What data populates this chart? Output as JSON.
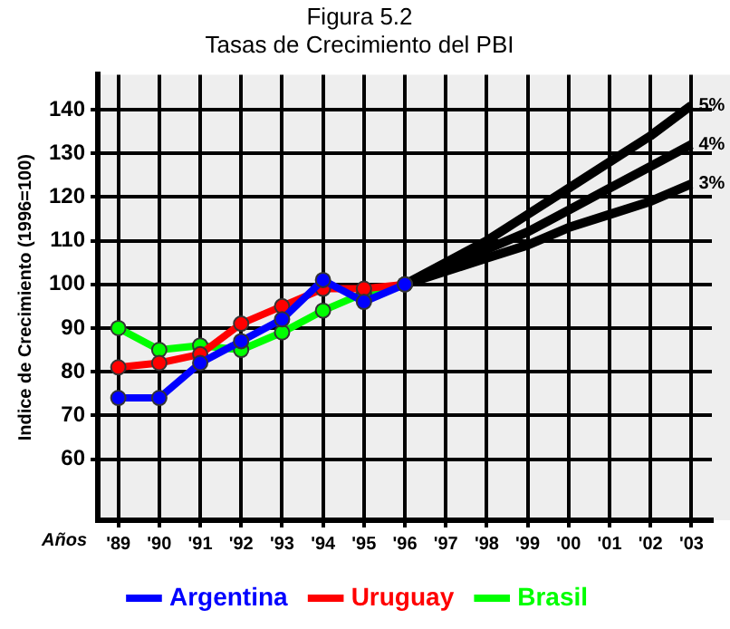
{
  "chart_data": {
    "type": "line",
    "title": "Figura 5.2",
    "subtitle": "Tasas de Crecimiento del PBI",
    "xlabel": "Años",
    "ylabel": "Indice de Crecimiento (1996=100)",
    "categories": [
      "'89",
      "'90",
      "'91",
      "'92",
      "'93",
      "'94",
      "'95",
      "'96",
      "'97",
      "'98",
      "'99",
      "'00",
      "'01",
      "'02",
      "'03"
    ],
    "series": [
      {
        "name": "Argentina",
        "color": "#0000ff",
        "values": [
          74,
          74,
          82,
          87,
          92,
          101,
          96,
          100,
          null,
          null,
          null,
          null,
          null,
          null,
          null
        ]
      },
      {
        "name": "Uruguay",
        "color": "#ff0000",
        "values": [
          81,
          82,
          84,
          91,
          95,
          99,
          99,
          100,
          null,
          null,
          null,
          null,
          null,
          null,
          null
        ]
      },
      {
        "name": "Brasil",
        "color": "#00ff00",
        "values": [
          90,
          85,
          86,
          85,
          89,
          94,
          98,
          100,
          null,
          null,
          null,
          null,
          null,
          null,
          null
        ]
      },
      {
        "name": "5%",
        "color": "#000000",
        "marker": "none",
        "values": [
          null,
          null,
          null,
          null,
          null,
          null,
          null,
          100,
          105,
          110,
          116,
          122,
          128,
          134,
          141
        ]
      },
      {
        "name": "4%",
        "color": "#000000",
        "marker": "none",
        "values": [
          null,
          null,
          null,
          null,
          null,
          null,
          null,
          100,
          104,
          108,
          112,
          117,
          122,
          127,
          132
        ]
      },
      {
        "name": "3%",
        "color": "#000000",
        "marker": "none",
        "values": [
          null,
          null,
          null,
          null,
          null,
          null,
          null,
          100,
          103,
          106,
          109,
          113,
          116,
          119,
          123
        ]
      }
    ],
    "ylim": [
      46,
      148
    ],
    "yticks": [
      60,
      70,
      80,
      90,
      100,
      110,
      120,
      130,
      140
    ],
    "grid": true,
    "legend": "bottom",
    "marker": "circle",
    "line_style": "solid"
  }
}
